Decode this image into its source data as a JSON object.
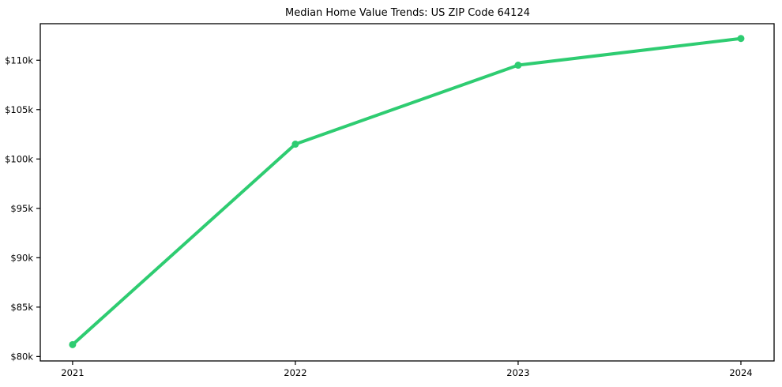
{
  "chart_data": {
    "type": "line",
    "title": "Median Home Value Trends: US ZIP Code 64124",
    "x": [
      2021,
      2022,
      2023,
      2024
    ],
    "values": [
      81200,
      101500,
      109500,
      112200
    ],
    "x_tick_labels": [
      "2021",
      "2022",
      "2023",
      "2024"
    ],
    "y_tick_values": [
      80000,
      85000,
      90000,
      95000,
      100000,
      105000,
      110000
    ],
    "y_tick_labels": [
      "$80k",
      "$85k",
      "$90k",
      "$95k",
      "$100k",
      "$105k",
      "$110k"
    ],
    "xlim": [
      2020.855,
      2024.149
    ],
    "ylim": [
      79550,
      113700
    ],
    "xlabel": "",
    "ylabel": "",
    "grid": false,
    "legend": "none",
    "line_color": "#2ecc71",
    "marker": "circle",
    "axis_color": "#000000",
    "background": "#ffffff"
  }
}
